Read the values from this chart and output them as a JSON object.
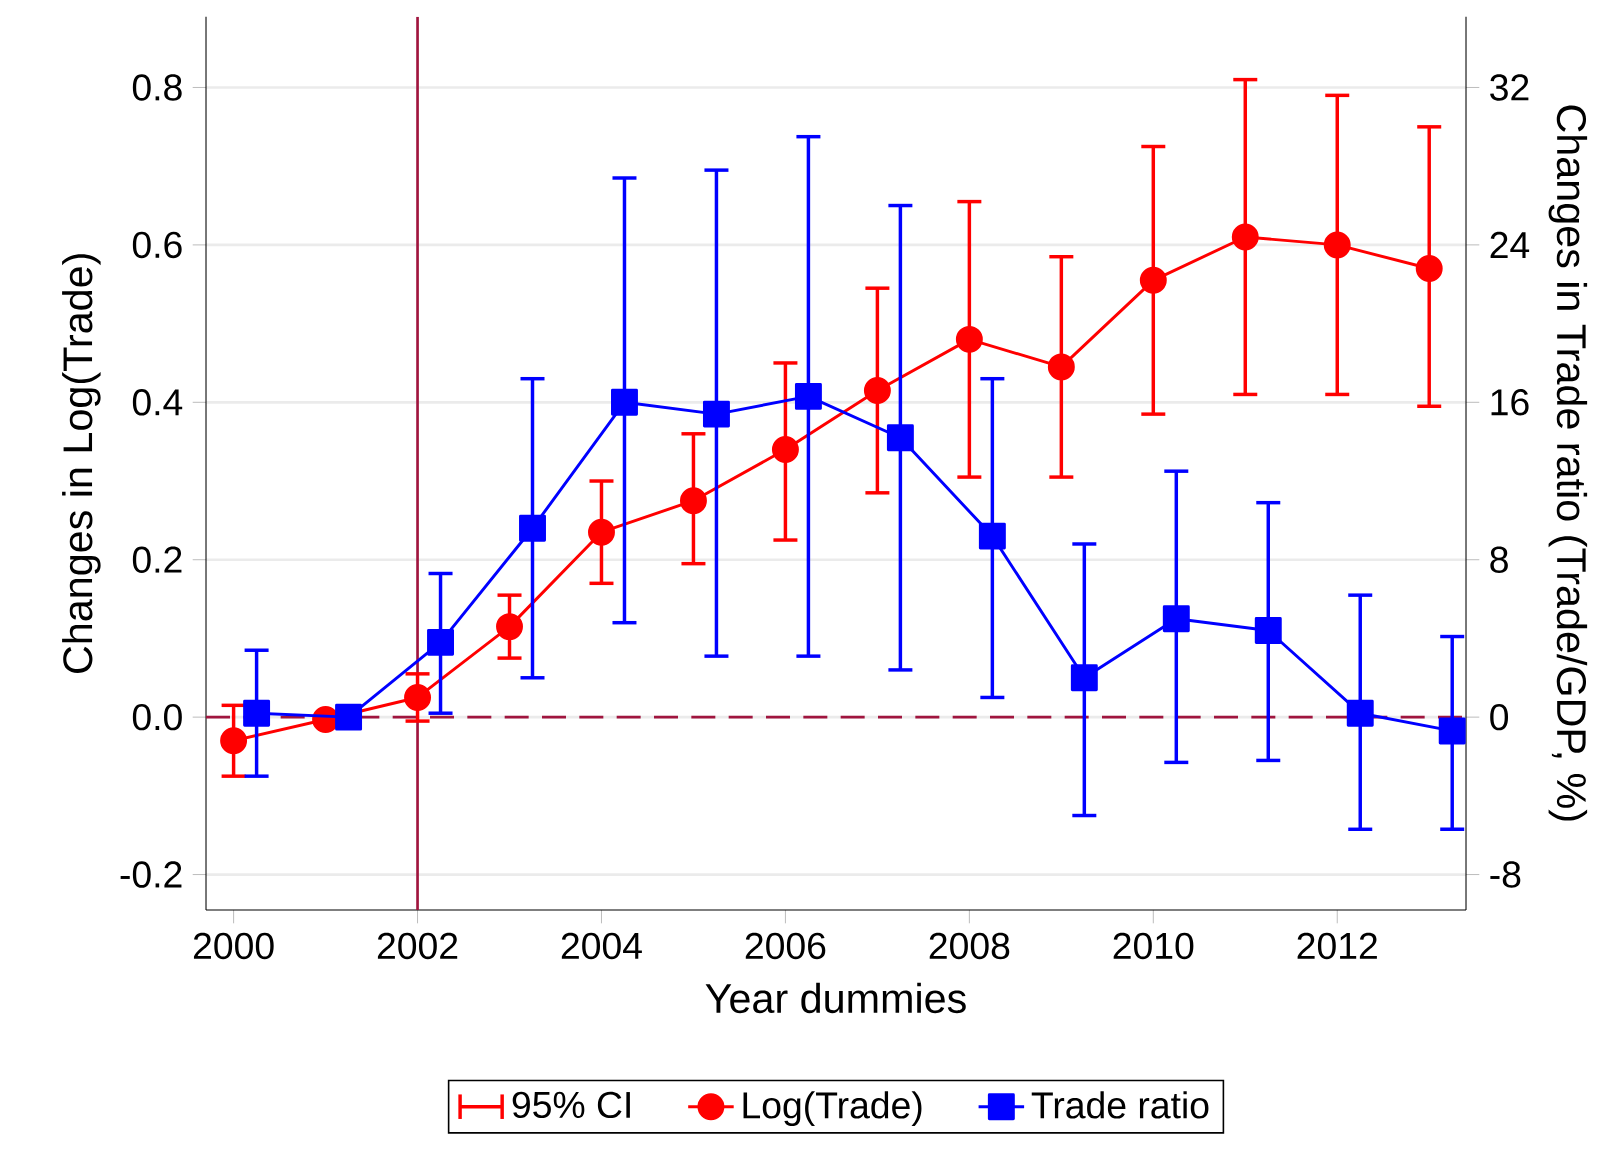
{
  "chart_data": {
    "type": "line",
    "xlabel": "Year dummies",
    "ylabel": "Changes in Log(Trade)",
    "y2label": "Changes in Trade ratio (Trade/GDP, %)",
    "annotations": [
      "95% CI"
    ],
    "x": [
      2000,
      2001,
      2002,
      2003,
      2004,
      2005,
      2006,
      2007,
      2008,
      2009,
      2010,
      2011,
      2012,
      2013
    ],
    "xlim": [
      1999.7,
      2013.4
    ],
    "xticks": [
      2000,
      2002,
      2004,
      2006,
      2008,
      2010,
      2012
    ],
    "ylim": [
      -0.245,
      0.89
    ],
    "yticks": [
      -0.2,
      {
        "value": 0,
        "label": "0.0"
      },
      0.2,
      0.4,
      0.6,
      0.8
    ],
    "y2lim": [
      -9.8,
      35.6
    ],
    "y2ticks": [
      -8,
      0,
      8,
      16,
      24,
      32
    ],
    "grid": "y",
    "legend": "bottom",
    "ref_lines": [
      {
        "axis": "x",
        "value": 2002,
        "color": "#a0153e",
        "line_style": "solid"
      },
      {
        "axis": "y",
        "value": 0,
        "color": "#a0153e",
        "line_style": "dashed"
      }
    ],
    "series": [
      {
        "name": "Log(Trade)",
        "color": "#ff0000",
        "marker": "circle",
        "values": [
          -0.03,
          -0.003,
          0.025,
          0.115,
          0.235,
          0.275,
          0.34,
          0.415,
          0.48,
          0.445,
          0.555,
          0.61,
          0.6,
          0.57
        ],
        "errors": [
          [
            -0.075,
            0.015
          ],
          null,
          [
            -0.005,
            0.055
          ],
          [
            0.075,
            0.155
          ],
          [
            0.17,
            0.3
          ],
          [
            0.195,
            0.36
          ],
          [
            0.225,
            0.45
          ],
          [
            0.285,
            0.545
          ],
          [
            0.305,
            0.655
          ],
          [
            0.305,
            0.585
          ],
          [
            0.385,
            0.725
          ],
          [
            0.41,
            0.81
          ],
          [
            0.41,
            0.79
          ],
          [
            0.395,
            0.75
          ]
        ]
      },
      {
        "name": "Trade ratio",
        "color": "#0000ff",
        "marker": "square",
        "axis": "y2",
        "x": [
          2000.25,
          2001.25,
          2002.25,
          2003.25,
          2004.25,
          2005.25,
          2006.25,
          2007.25,
          2008.25,
          2009.25,
          2010.25,
          2011.25,
          2012.25,
          2013.25
        ],
        "values": [
          0.2,
          0,
          3.8,
          9.6,
          16,
          15.4,
          16.3,
          14.2,
          9.2,
          2.0,
          5.0,
          4.4,
          0.2,
          -0.7
        ],
        "errors": [
          [
            -3,
            3.4
          ],
          null,
          [
            0.2,
            7.3
          ],
          [
            2,
            17.2
          ],
          [
            4.8,
            27.4
          ],
          [
            3.1,
            27.8
          ],
          [
            3.1,
            29.5
          ],
          [
            2.4,
            26
          ],
          [
            1,
            17.2
          ],
          [
            -5,
            8.8
          ],
          [
            -2.3,
            12.5
          ],
          [
            -2.2,
            10.9
          ],
          [
            -5.7,
            6.2
          ],
          [
            -5.7,
            4.1
          ]
        ]
      }
    ]
  }
}
